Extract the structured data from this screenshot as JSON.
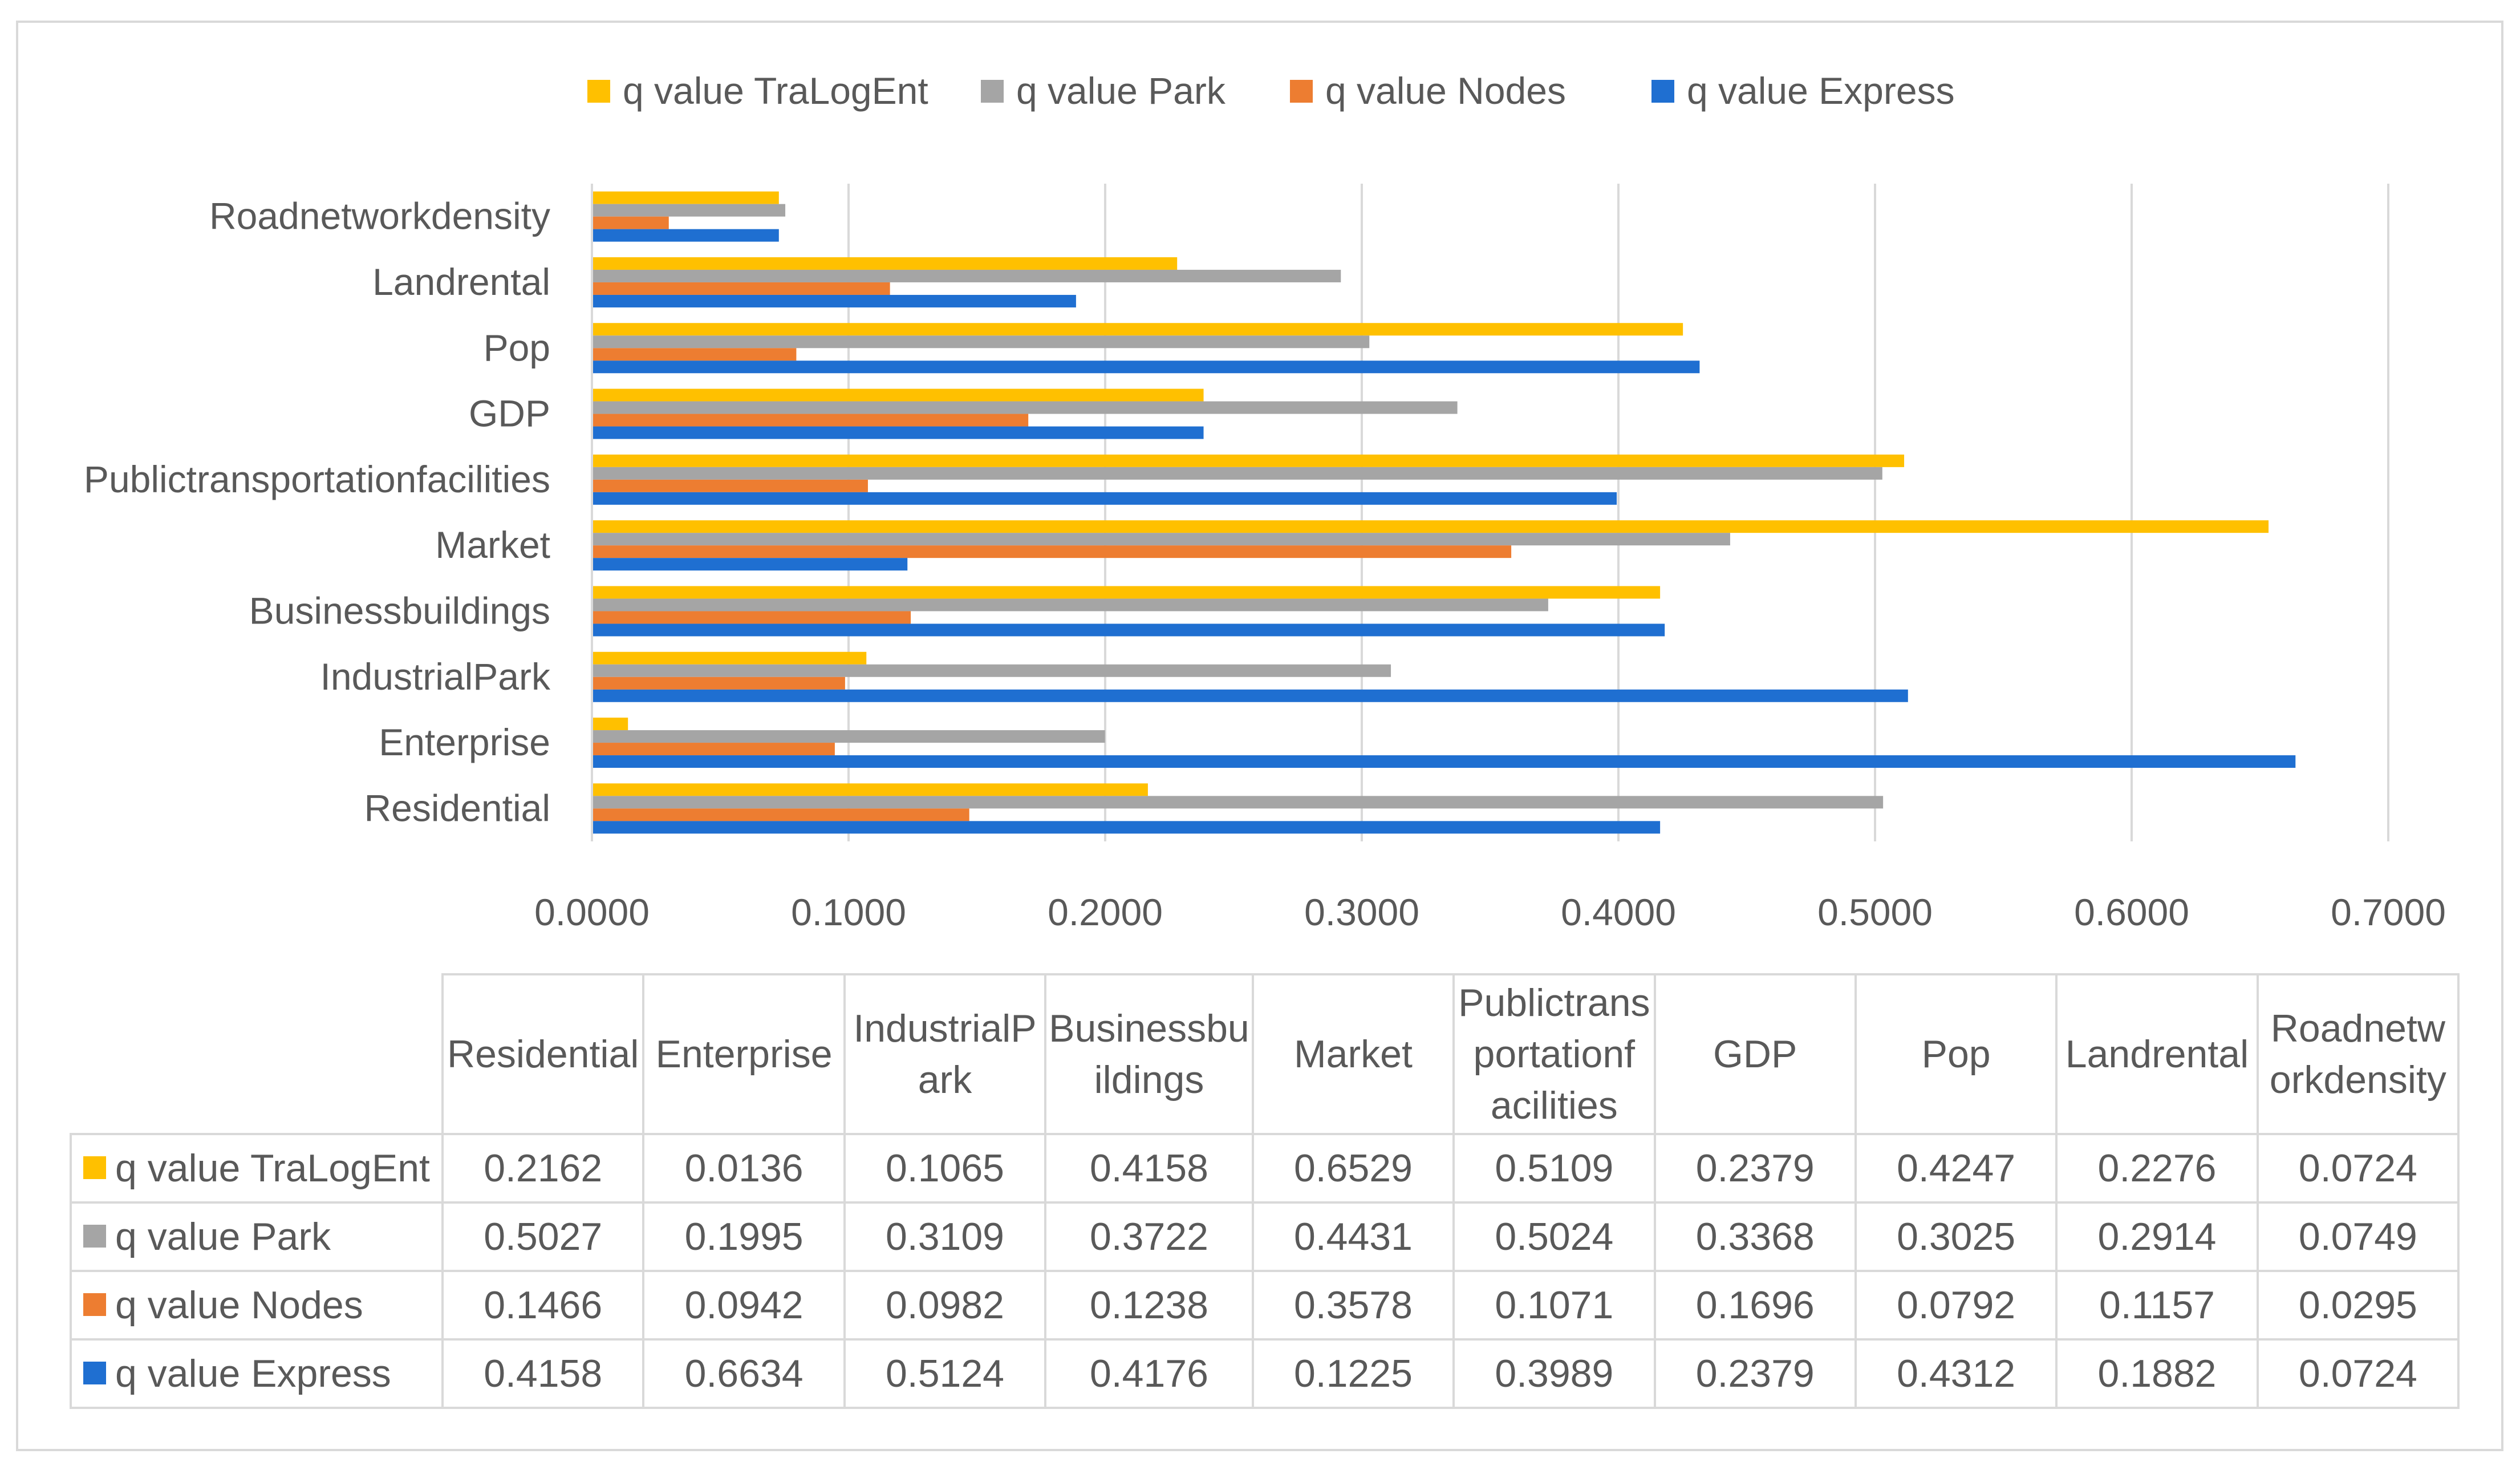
{
  "chart_data": {
    "type": "bar",
    "orientation": "horizontal",
    "title": "",
    "xlabel": "",
    "ylabel": "",
    "xlim": [
      0,
      0.7
    ],
    "x_ticks": [
      "0.0000",
      "0.1000",
      "0.2000",
      "0.3000",
      "0.4000",
      "0.5000",
      "0.6000",
      "0.7000"
    ],
    "x_tick_values": [
      0,
      0.1,
      0.2,
      0.3,
      0.4,
      0.5,
      0.6,
      0.7
    ],
    "grid": true,
    "legend_position": "top",
    "categories": [
      "Residential",
      "Enterprise",
      "IndustrialPark",
      "Businessbuildings",
      "Market",
      "Publictransportationfacilities",
      "GDP",
      "Pop",
      "Landrental",
      "Roadnetworkdensity"
    ],
    "table_headers": [
      [
        "Residential"
      ],
      [
        "Enterprise"
      ],
      [
        "IndustrialP",
        "ark"
      ],
      [
        "Businessbu",
        "ildings"
      ],
      [
        "Market"
      ],
      [
        "Publictrans",
        "portationf",
        "acilities"
      ],
      [
        "GDP"
      ],
      [
        "Pop"
      ],
      [
        "Landrental"
      ],
      [
        "Roadnetw",
        "orkdensity"
      ]
    ],
    "series": [
      {
        "name": "q value TraLogEnt",
        "color": "#ffc000",
        "values": [
          0.2162,
          0.0136,
          0.1065,
          0.4158,
          0.6529,
          0.5109,
          0.2379,
          0.4247,
          0.2276,
          0.0724
        ],
        "labels": [
          "0.2162",
          "0.0136",
          "0.1065",
          "0.4158",
          "0.6529",
          "0.5109",
          "0.2379",
          "0.4247",
          "0.2276",
          "0.0724"
        ]
      },
      {
        "name": "q value Park",
        "color": "#a5a5a5",
        "values": [
          0.5027,
          0.1995,
          0.3109,
          0.3722,
          0.4431,
          0.5024,
          0.3368,
          0.3025,
          0.2914,
          0.0749
        ],
        "labels": [
          "0.5027",
          "0.1995",
          "0.3109",
          "0.3722",
          "0.4431",
          "0.5024",
          "0.3368",
          "0.3025",
          "0.2914",
          "0.0749"
        ]
      },
      {
        "name": "q value Nodes",
        "color": "#ed7d31",
        "values": [
          0.1466,
          0.0942,
          0.0982,
          0.1238,
          0.3578,
          0.1071,
          0.1696,
          0.0792,
          0.1157,
          0.0295
        ],
        "labels": [
          "0.1466",
          "0.0942",
          "0.0982",
          "0.1238",
          "0.3578",
          "0.1071",
          "0.1696",
          "0.0792",
          "0.1157",
          "0.0295"
        ]
      },
      {
        "name": "q value Express",
        "color": "#1f6fd1",
        "values": [
          0.4158,
          0.6634,
          0.5124,
          0.4176,
          0.1225,
          0.3989,
          0.2379,
          0.4312,
          0.1882,
          0.0724
        ],
        "labels": [
          "0.4158",
          "0.6634",
          "0.5124",
          "0.4176",
          "0.1225",
          "0.3989",
          "0.2379",
          "0.4312",
          "0.1882",
          "0.0724"
        ]
      }
    ]
  }
}
